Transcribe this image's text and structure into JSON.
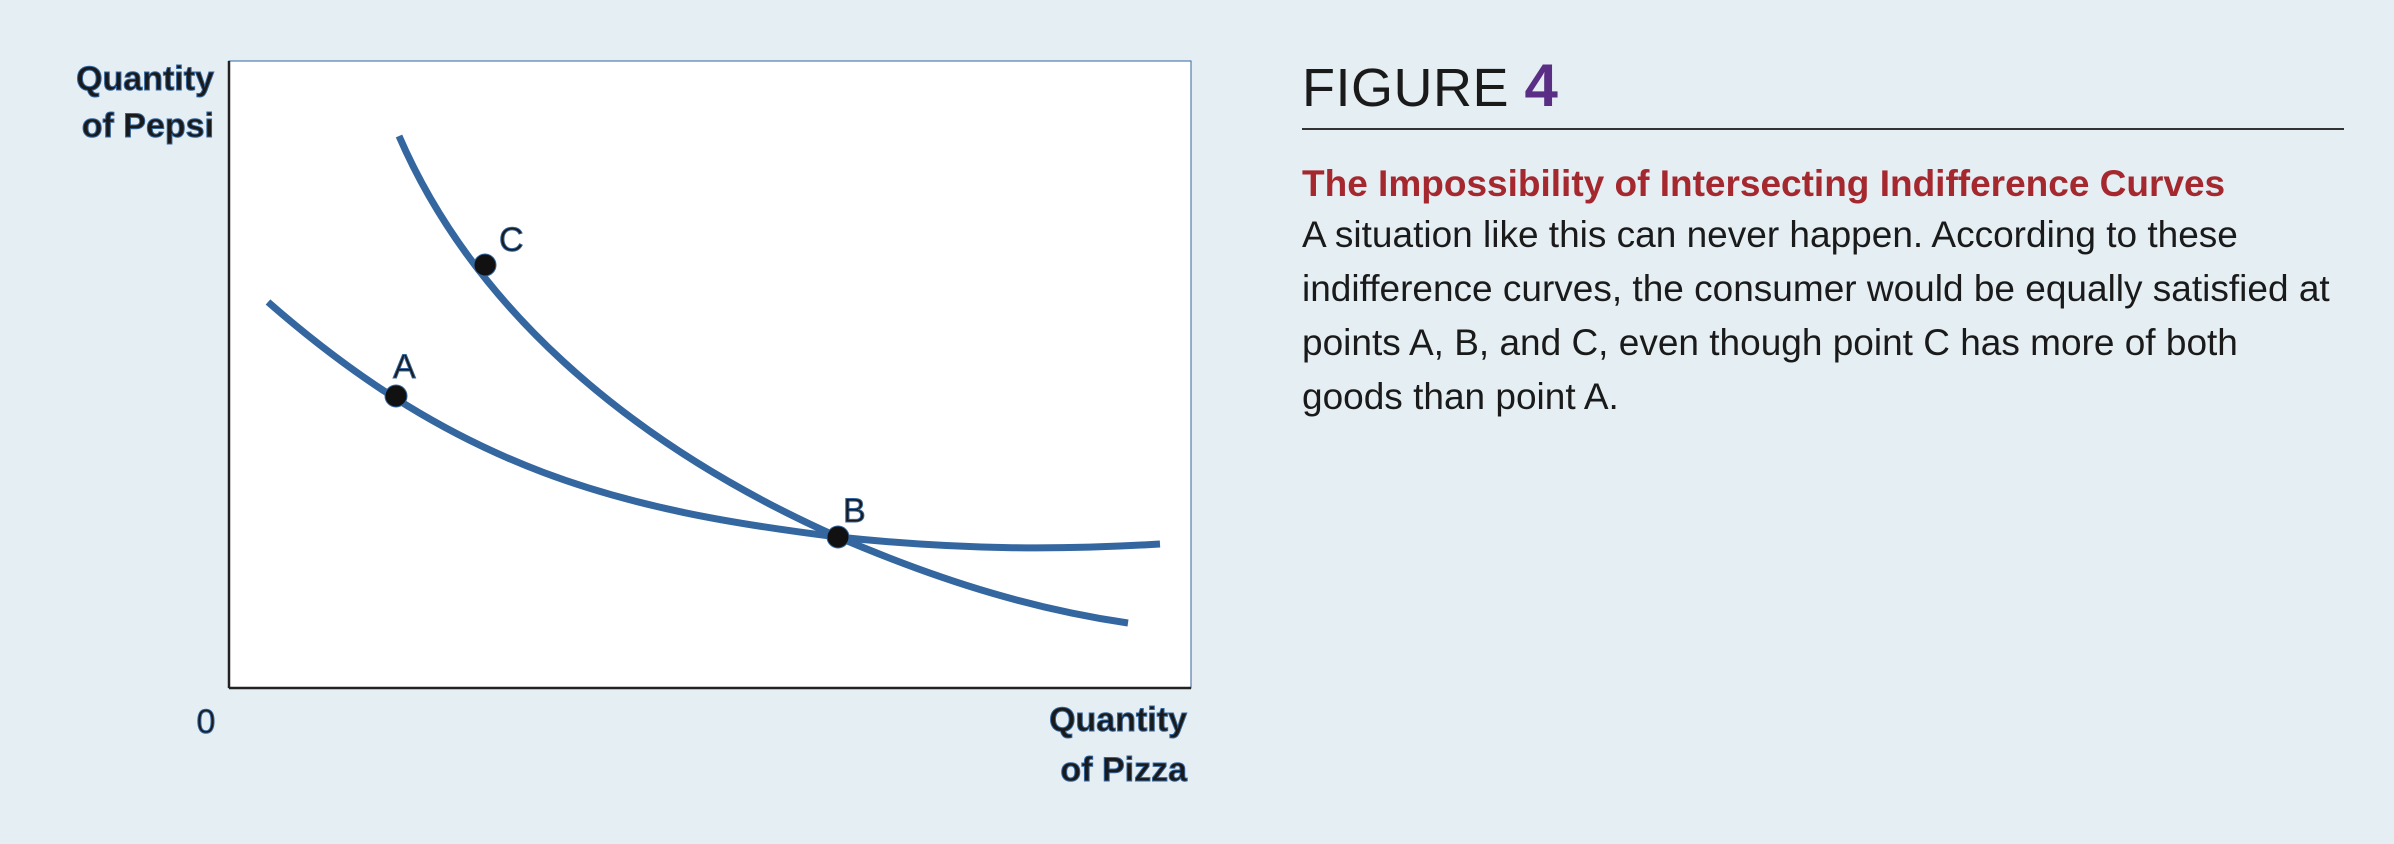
{
  "diagram": {
    "y_axis_label_line1": "Quantity",
    "y_axis_label_line2": "of Pepsi",
    "x_axis_label_line1": "Quantity",
    "x_axis_label_line2": "of Pizza",
    "origin_label": "0",
    "points": [
      {
        "label": "A"
      },
      {
        "label": "B"
      },
      {
        "label": "C"
      }
    ],
    "curve_color": "#3466a0",
    "point_color": "#111111"
  },
  "figure": {
    "heading_word": "FIGURE",
    "heading_number": "4",
    "title": "The Impossibility of Intersecting Indifference Curves",
    "caption": "A situation like this can never happen. According to these indifference curves, the consumer would be equally satisfied at points A, B, and C, even though point C has more of both goods than point A."
  }
}
